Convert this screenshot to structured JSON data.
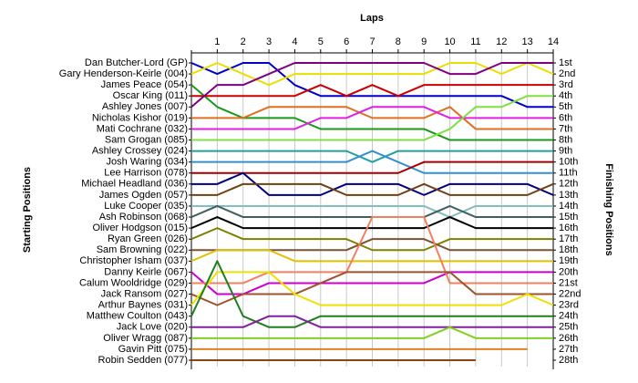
{
  "chart_data": {
    "type": "line",
    "title": "Laps",
    "y_label": "Starting Positions",
    "y2_label": "Finishing Positions",
    "x": [
      0,
      1,
      2,
      3,
      4,
      5,
      6,
      7,
      8,
      9,
      10,
      11,
      12,
      13,
      14
    ],
    "xlim": [
      0,
      14
    ],
    "xticks": [
      1,
      2,
      3,
      4,
      5,
      6,
      7,
      8,
      9,
      10,
      11,
      12,
      13,
      14
    ],
    "ylim": [
      1,
      28
    ],
    "grid": true,
    "finishing_labels": [
      "1st",
      "2nd",
      "3rd",
      "4th",
      "5th",
      "6th",
      "7th",
      "8th",
      "9th",
      "10th",
      "11th",
      "12th",
      "13th",
      "14th",
      "15th",
      "16th",
      "17th",
      "18th",
      "19th",
      "20th",
      "21st",
      "22nd",
      "23rd",
      "24th",
      "25th",
      "26th",
      "27th",
      "28th"
    ],
    "series": [
      {
        "name": "Dan Butcher-Lord (GP)",
        "color": "#0000cc",
        "values": [
          1,
          2,
          1,
          1,
          3,
          4,
          4,
          4,
          4,
          4,
          4,
          4,
          4,
          5,
          5
        ]
      },
      {
        "name": "Gary Henderson-Keirle (004)",
        "color": "#e8e000",
        "values": [
          2,
          1,
          2,
          3,
          2,
          2,
          2,
          2,
          2,
          2,
          1,
          1,
          2,
          1,
          2
        ]
      },
      {
        "name": "James Peace (054)",
        "color": "#1a9a1a",
        "values": [
          3,
          5,
          6,
          6,
          6,
          7,
          7,
          7,
          7,
          7,
          8,
          8,
          8,
          8,
          8
        ]
      },
      {
        "name": "Oscar King (011)",
        "color": "#cc0000",
        "values": [
          4,
          4,
          4,
          4,
          4,
          3,
          4,
          3,
          4,
          3,
          3,
          3,
          3,
          3,
          3
        ]
      },
      {
        "name": "Ashley Jones (007)",
        "color": "#800080",
        "values": [
          5,
          3,
          3,
          2,
          1,
          1,
          1,
          1,
          1,
          1,
          2,
          2,
          1,
          1,
          1
        ]
      },
      {
        "name": "Nicholas Kishor (019)",
        "color": "#e07020",
        "values": [
          6,
          6,
          6,
          5,
          5,
          5,
          5,
          6,
          6,
          6,
          5,
          7,
          7,
          7,
          7
        ]
      },
      {
        "name": "Mati Cochrane (032)",
        "color": "#e020e0",
        "values": [
          7,
          7,
          7,
          7,
          7,
          6,
          6,
          5,
          5,
          5,
          6,
          6,
          6,
          6,
          6
        ]
      },
      {
        "name": "Sam Grogan (085)",
        "color": "#80e040",
        "values": [
          8,
          8,
          8,
          8,
          8,
          8,
          8,
          8,
          8,
          8,
          7,
          5,
          5,
          4,
          4
        ]
      },
      {
        "name": "Ashley Crossey (024)",
        "color": "#20a0a0",
        "values": [
          9,
          9,
          9,
          9,
          9,
          9,
          9,
          10,
          9,
          9,
          9,
          9,
          9,
          9,
          9
        ]
      },
      {
        "name": "Josh Waring (034)",
        "color": "#3090d0",
        "values": [
          10,
          10,
          10,
          10,
          10,
          10,
          10,
          9,
          10,
          11,
          11,
          11,
          11,
          11,
          11
        ]
      },
      {
        "name": "Lee Harrison (078)",
        "color": "#a00000",
        "values": [
          11,
          11,
          11,
          11,
          11,
          11,
          11,
          11,
          11,
          10,
          10,
          10,
          10,
          10,
          10
        ]
      },
      {
        "name": "Michael Headland (036)",
        "color": "#000080",
        "values": [
          12,
          12,
          11,
          13,
          13,
          13,
          12,
          12,
          12,
          13,
          12,
          12,
          12,
          12,
          13
        ]
      },
      {
        "name": "James Ogden (057)",
        "color": "#704010",
        "values": [
          13,
          13,
          12,
          12,
          12,
          12,
          13,
          13,
          13,
          12,
          13,
          13,
          13,
          13,
          12
        ]
      },
      {
        "name": "Luke Cooper (035)",
        "color": "#80c0c0",
        "values": [
          14,
          14,
          14,
          14,
          14,
          14,
          14,
          14,
          14,
          14,
          15,
          14,
          14,
          14,
          14
        ]
      },
      {
        "name": "Ash Robinson (068)",
        "color": "#406060",
        "values": [
          15,
          14,
          15,
          15,
          15,
          15,
          15,
          15,
          15,
          15,
          14,
          15,
          15,
          15,
          15
        ]
      },
      {
        "name": "Oliver Hodgson (015)",
        "color": "#000000",
        "values": [
          16,
          15,
          16,
          16,
          16,
          16,
          16,
          16,
          16,
          16,
          15,
          16,
          16,
          16,
          16
        ]
      },
      {
        "name": "Ryan Green (026)",
        "color": "#808000",
        "values": [
          17,
          16,
          17,
          17,
          17,
          17,
          17,
          18,
          18,
          18,
          17,
          17,
          17,
          17,
          17
        ]
      },
      {
        "name": "Sam Browning (022)",
        "color": "#805030",
        "values": [
          18,
          18,
          18,
          18,
          18,
          18,
          18,
          17,
          17,
          17,
          18,
          18,
          18,
          18,
          18
        ]
      },
      {
        "name": "Christopher Isham (037)",
        "color": "#e0c000",
        "values": [
          19,
          18,
          18,
          18,
          19,
          19,
          19,
          19,
          19,
          19,
          19,
          19,
          19,
          19,
          19
        ]
      },
      {
        "name": "Danny Keirle (067)",
        "color": "#cc00cc",
        "values": [
          20,
          22,
          22,
          21,
          21,
          21,
          21,
          21,
          21,
          21,
          20,
          20,
          20,
          20,
          20
        ]
      },
      {
        "name": "Calum Wooldridge (029)",
        "color": "#f08060",
        "values": [
          21,
          21,
          21,
          20,
          20,
          20,
          20,
          15,
          15,
          15,
          21,
          21,
          21,
          21,
          21
        ]
      },
      {
        "name": "Jack Ransom (027)",
        "color": "#a0522d",
        "values": [
          22,
          23,
          22,
          22,
          22,
          21,
          20,
          20,
          20,
          20,
          20,
          22,
          22,
          22,
          22
        ]
      },
      {
        "name": "Arthur Baynes (031)",
        "color": "#f0e000",
        "values": [
          23,
          20,
          20,
          20,
          22,
          23,
          23,
          23,
          23,
          23,
          23,
          23,
          23,
          22,
          23
        ]
      },
      {
        "name": "Matthew Coulton (043)",
        "color": "#208020",
        "values": [
          24,
          19,
          24,
          25,
          25,
          24,
          24,
          24,
          24,
          24,
          24,
          24,
          24,
          24,
          24
        ]
      },
      {
        "name": "Jack Love (020)",
        "color": "#8020a0",
        "values": [
          25,
          25,
          25,
          24,
          24,
          25,
          25,
          25,
          25,
          25,
          25,
          25,
          25,
          25,
          25
        ]
      },
      {
        "name": "Oliver Wragg (087)",
        "color": "#80d020",
        "values": [
          26,
          26,
          26,
          26,
          26,
          26,
          26,
          26,
          26,
          26,
          25,
          26,
          26,
          26,
          26
        ]
      },
      {
        "name": "Gavin Pitt (075)",
        "color": "#e08020",
        "values": [
          27,
          27,
          27,
          27,
          27,
          27,
          27,
          27,
          27,
          27,
          27,
          27,
          27,
          27,
          null
        ]
      },
      {
        "name": "Robin Sedden (077)",
        "color": "#8b4513",
        "values": [
          28,
          28,
          28,
          28,
          28,
          28,
          28,
          28,
          28,
          28,
          28,
          28,
          null,
          null,
          null
        ]
      }
    ]
  }
}
